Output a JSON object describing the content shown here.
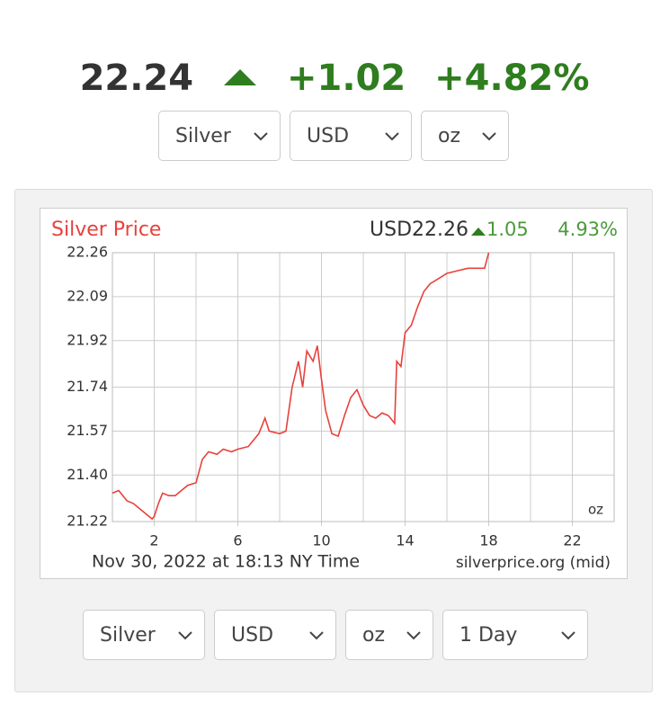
{
  "header": {
    "price": "22.24",
    "change": "+1.02",
    "percent": "+4.82%"
  },
  "top_selects": [
    "Silver",
    "USD",
    "oz"
  ],
  "chart_data": {
    "type": "line",
    "title": "Silver Price",
    "quote": "USD22.26",
    "change": "1.05",
    "percent": "4.93%",
    "unit": "oz",
    "footnote": "Nov 30, 2022 at 18:13 NY Time",
    "source": "silverprice.org (mid)",
    "x": [
      0,
      0.3,
      0.7,
      1.0,
      1.3,
      1.6,
      1.9,
      2.0,
      2.2,
      2.4,
      2.7,
      3.0,
      3.3,
      3.6,
      4.0,
      4.3,
      4.6,
      5.0,
      5.3,
      5.7,
      6.0,
      6.5,
      7.0,
      7.3,
      7.5,
      8.0,
      8.3,
      8.6,
      8.9,
      9.1,
      9.3,
      9.6,
      9.8,
      10.0,
      10.2,
      10.5,
      10.8,
      11.1,
      11.4,
      11.7,
      12.0,
      12.3,
      12.6,
      12.9,
      13.2,
      13.5,
      13.6,
      13.8,
      14.0,
      14.3,
      14.6,
      14.9,
      15.2,
      15.6,
      16.0,
      16.5,
      17.0,
      17.5,
      17.8,
      18.0
    ],
    "values": [
      21.33,
      21.34,
      21.3,
      21.29,
      21.27,
      21.25,
      21.23,
      21.24,
      21.29,
      21.33,
      21.32,
      21.32,
      21.34,
      21.36,
      21.37,
      21.46,
      21.49,
      21.48,
      21.5,
      21.49,
      21.5,
      21.51,
      21.56,
      21.62,
      21.57,
      21.56,
      21.57,
      21.74,
      21.84,
      21.74,
      21.88,
      21.84,
      21.9,
      21.77,
      21.65,
      21.56,
      21.55,
      21.63,
      21.7,
      21.73,
      21.67,
      21.63,
      21.62,
      21.64,
      21.63,
      21.6,
      21.84,
      21.82,
      21.95,
      21.98,
      22.05,
      22.11,
      22.14,
      22.16,
      22.18,
      22.19,
      22.2,
      22.2,
      22.2,
      22.26
    ],
    "color": "#e8413c",
    "xlim": [
      0,
      24
    ],
    "xticks": [
      2,
      6,
      10,
      14,
      18,
      22
    ],
    "minor_xticks": [
      0,
      4,
      8,
      12,
      16,
      20,
      24
    ],
    "ylim": [
      21.22,
      22.26
    ],
    "yticks": [
      21.22,
      {
        "value": 21.4,
        "label": "21.40"
      },
      21.57,
      21.74,
      21.92,
      22.09,
      22.26
    ],
    "grid": true
  },
  "bottom_selects": [
    "Silver",
    "USD",
    "oz",
    "1 Day"
  ]
}
